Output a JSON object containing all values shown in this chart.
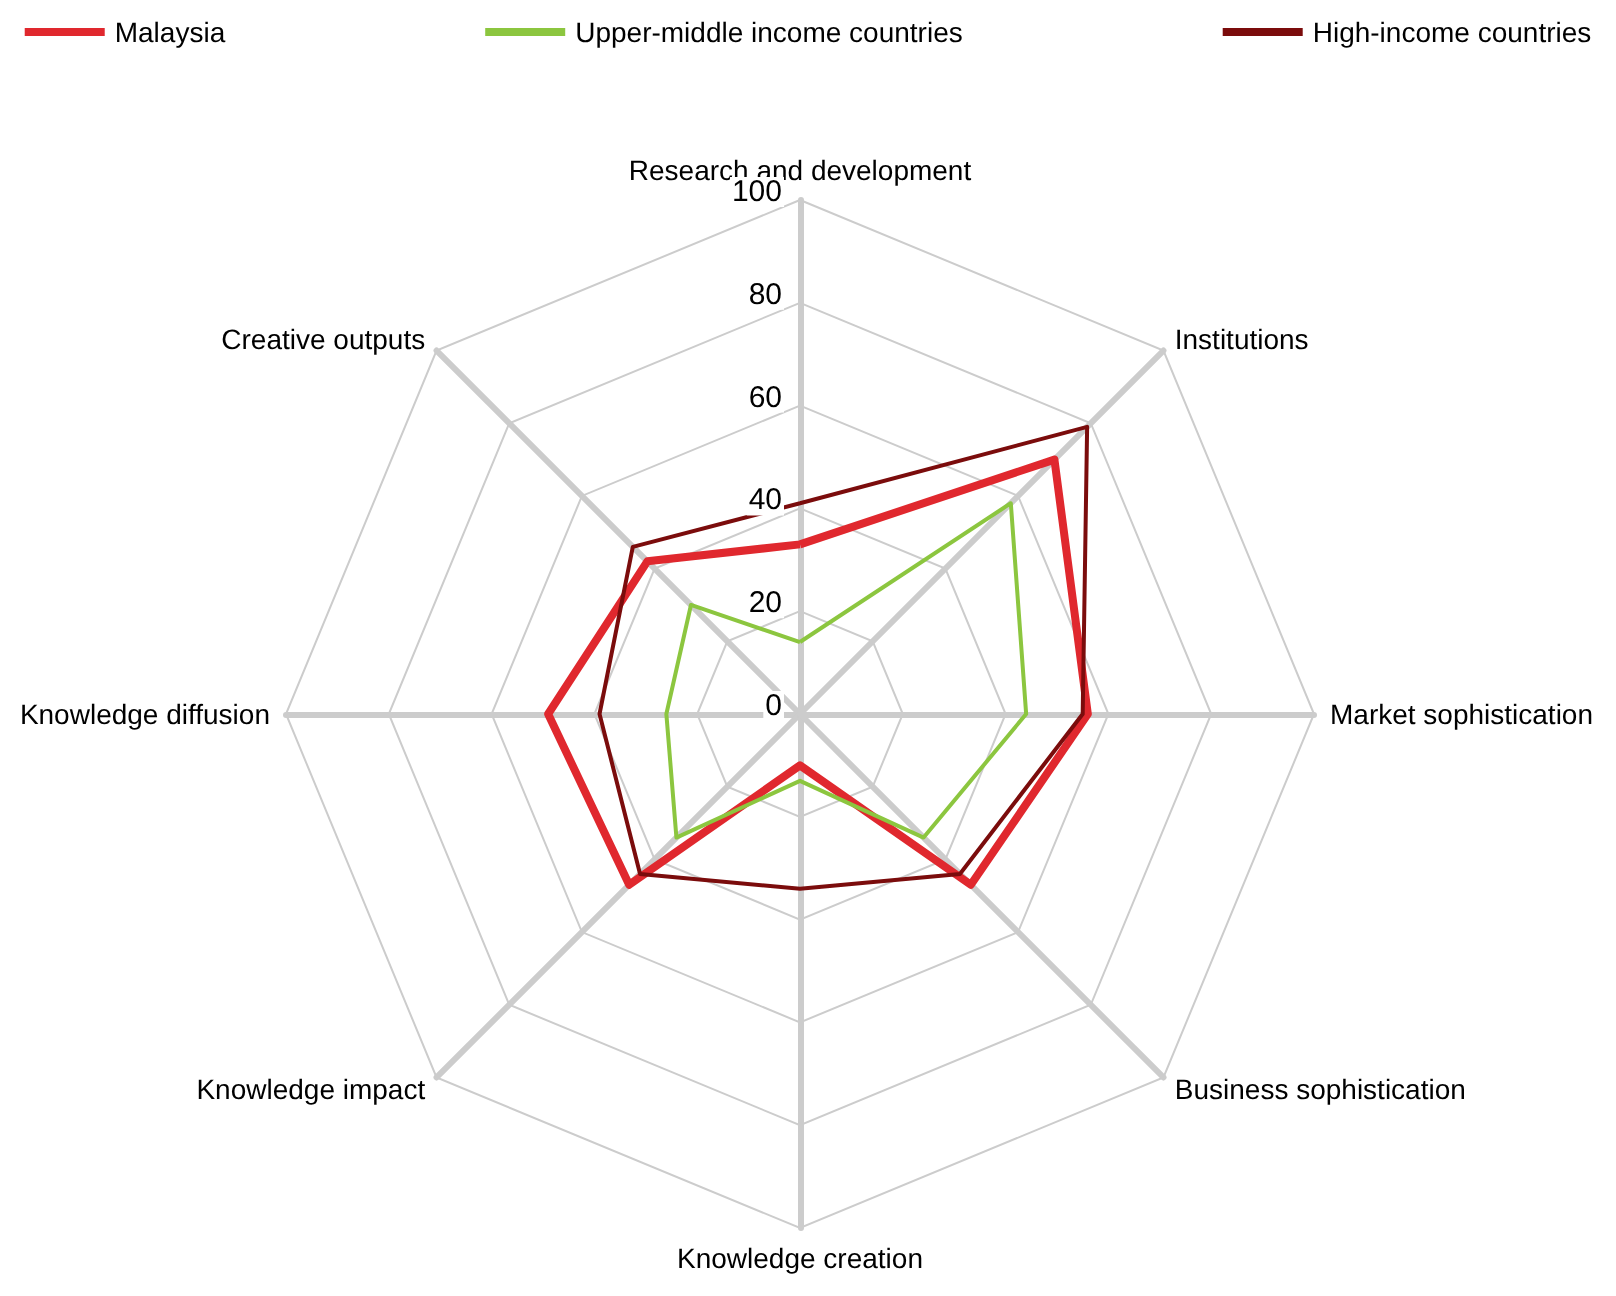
{
  "chart_data": {
    "type": "radar",
    "categories": [
      "Research and development",
      "Institutions",
      "Market sophistication",
      "Business sophistication",
      "Knowledge creation",
      "Knowledge impact",
      "Knowledge diffusion",
      "Creative outputs"
    ],
    "series": [
      {
        "name": "Malaysia",
        "color": "#e0282e",
        "values": [
          33,
          70,
          56,
          47,
          10,
          47,
          49,
          42
        ]
      },
      {
        "name": "Upper-middle income countries",
        "color": "#8cc63f",
        "values": [
          14,
          58,
          44,
          34,
          13,
          34,
          26,
          30
        ]
      },
      {
        "name": "High-income countries",
        "color": "#7b0c0c",
        "values": [
          41,
          79,
          55,
          44,
          34,
          44,
          39,
          46
        ]
      }
    ],
    "ylim": [
      0,
      100
    ],
    "yticks": [
      0,
      20,
      40,
      60,
      80,
      100
    ],
    "legend": "top",
    "marker": "none",
    "line_style": "solid"
  }
}
